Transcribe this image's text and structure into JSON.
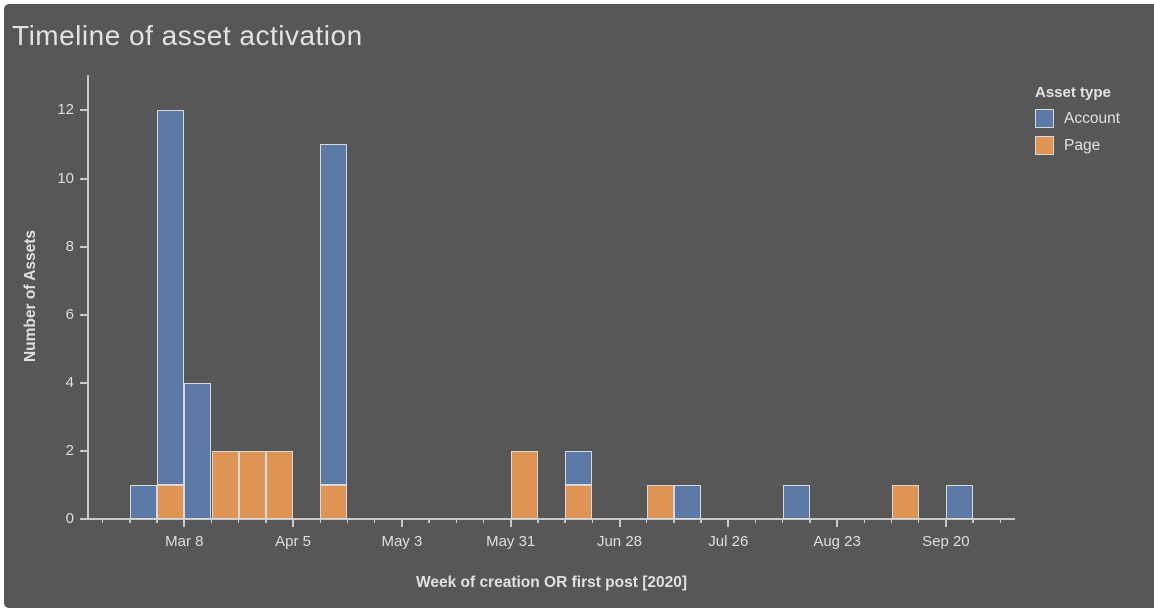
{
  "title": "Timeline of asset activation",
  "colors": {
    "background": "#575757",
    "account_blue": "#5D79A5",
    "page_orange": "#DE9454",
    "bar_border": "#D8D8D8",
    "axis_line": "#C9C9C9",
    "text": "#DEDEDE"
  },
  "chart_data": {
    "type": "bar",
    "stacked": true,
    "title": "Timeline of asset activation",
    "xlabel": "Week of creation OR first post [2020]",
    "ylabel": "Number of Assets",
    "x_unit": "week (2020)",
    "grid": false,
    "categories": [
      "Feb 23",
      "Mar 1",
      "Mar 8",
      "Mar 15",
      "Mar 22",
      "Mar 29",
      "Apr 12",
      "May 31",
      "Jun 14",
      "Jul 5",
      "Jul 12",
      "Aug 9",
      "Sep 6",
      "Sep 20"
    ],
    "week_offsets_from_mar8": [
      -2,
      -1,
      0,
      1,
      2,
      3,
      5,
      12,
      14,
      17,
      18,
      22,
      26,
      28
    ],
    "series": [
      {
        "name": "Page",
        "color": "#DE9454",
        "values": [
          0,
          1,
          0,
          2,
          2,
          2,
          1,
          2,
          1,
          1,
          0,
          0,
          1,
          0
        ]
      },
      {
        "name": "Account",
        "color": "#5D79A5",
        "values": [
          1,
          11,
          4,
          0,
          0,
          0,
          10,
          0,
          1,
          0,
          1,
          1,
          0,
          1
        ]
      }
    ],
    "stack_order_bottom_to_top": [
      "Page",
      "Account"
    ],
    "totals_by_week": [
      1,
      12,
      4,
      2,
      2,
      2,
      11,
      2,
      2,
      1,
      1,
      1,
      1,
      1
    ],
    "ylim": [
      0,
      13
    ],
    "y_ticks": [
      0,
      2,
      4,
      6,
      8,
      10,
      12
    ],
    "x_major_ticks": [
      {
        "label": "Mar 8",
        "week_offset": 0
      },
      {
        "label": "Apr 5",
        "week_offset": 4
      },
      {
        "label": "May 3",
        "week_offset": 8
      },
      {
        "label": "May 31",
        "week_offset": 12
      },
      {
        "label": "Jun 28",
        "week_offset": 16
      },
      {
        "label": "Jul 26",
        "week_offset": 20
      },
      {
        "label": "Aug 23",
        "week_offset": 24
      },
      {
        "label": "Sep 20",
        "week_offset": 28
      }
    ],
    "x_minor_ticks_weekly": {
      "from_offset": -3,
      "to_offset": 30
    },
    "legend": {
      "title": "Asset type",
      "position": "top-right",
      "entries": [
        {
          "label": "Account",
          "color": "#5D79A5"
        },
        {
          "label": "Page",
          "color": "#DE9454"
        }
      ]
    }
  }
}
